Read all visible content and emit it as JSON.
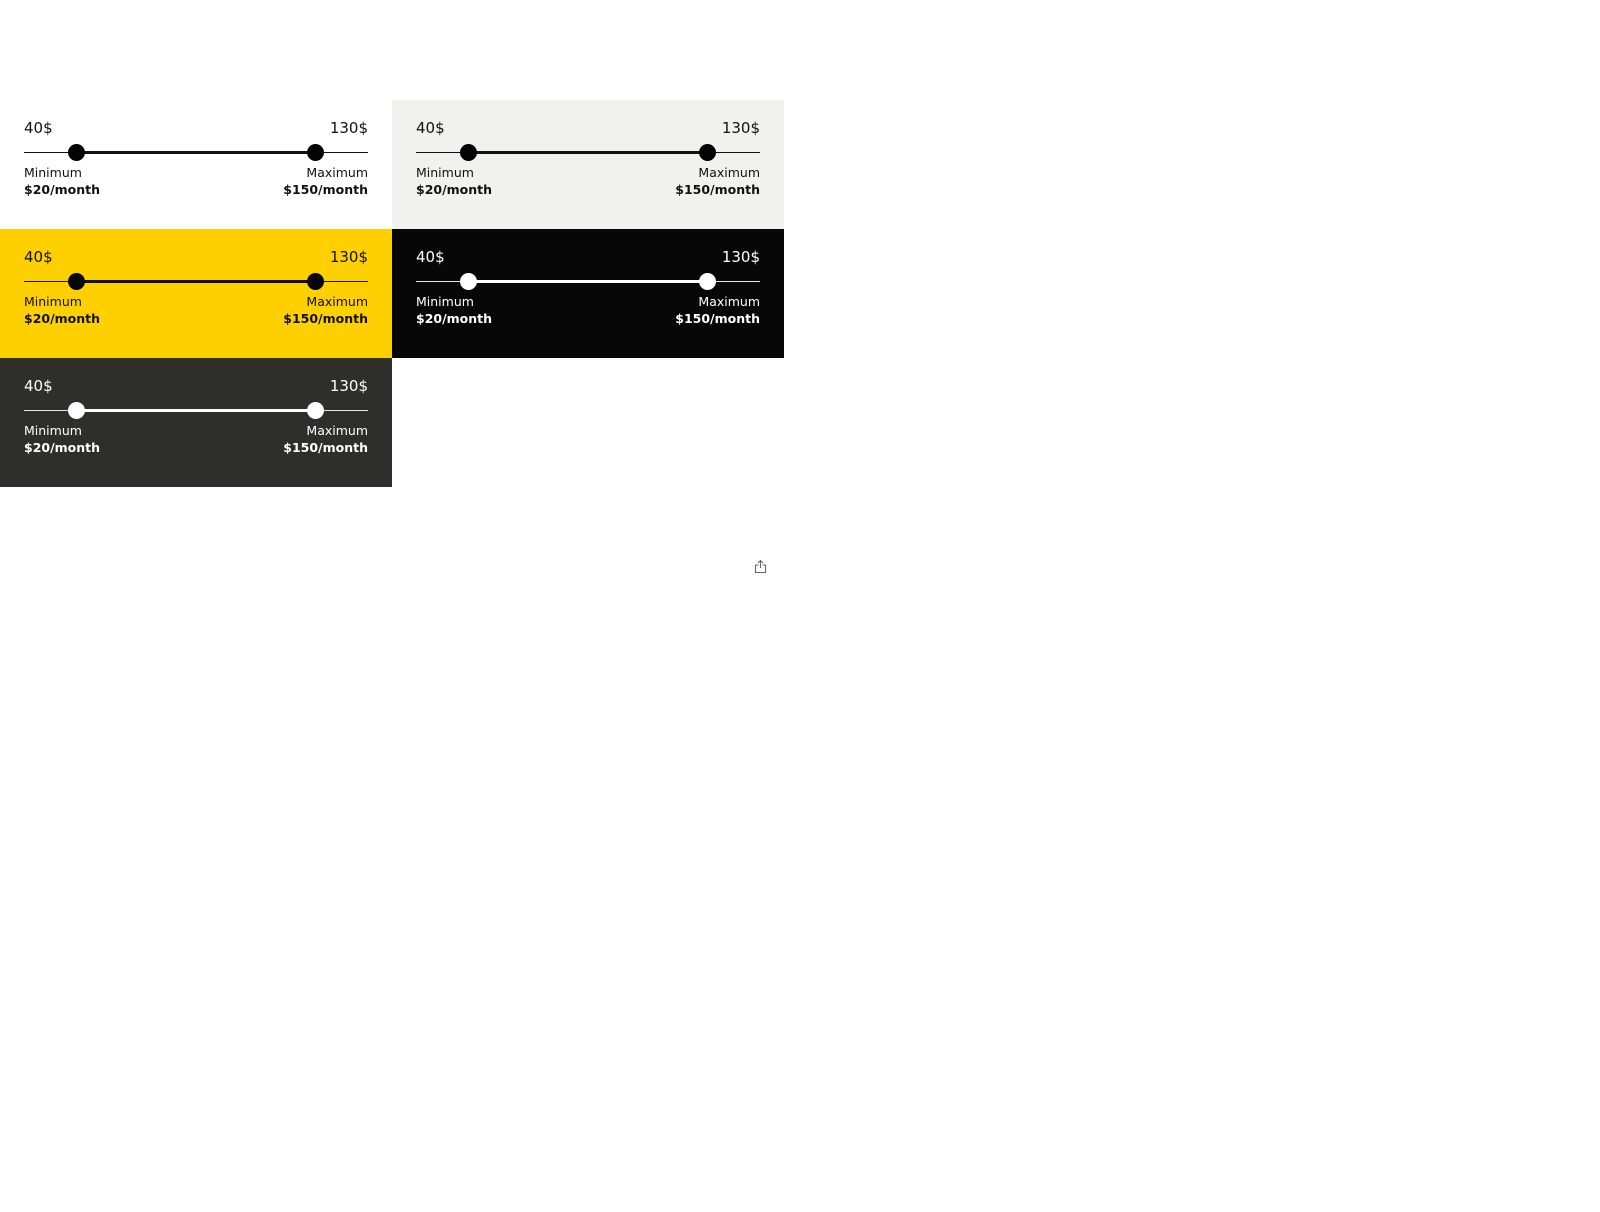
{
  "slider_min": 20,
  "slider_max": 150,
  "panels": [
    {
      "id": "white",
      "background": "#ffffff",
      "ink": "dark",
      "low_value": 40,
      "high_value": 130,
      "low_label": "40$",
      "high_label": "130$",
      "min_caption": "Minimum",
      "min_amount": "$20/month",
      "max_caption": "Maximum",
      "max_amount": "$150/month"
    },
    {
      "id": "light-gray",
      "background": "#f1f1ef",
      "ink": "dark",
      "low_value": 40,
      "high_value": 130,
      "low_label": "40$",
      "high_label": "130$",
      "min_caption": "Minimum",
      "min_amount": "$20/month",
      "max_caption": "Maximum",
      "max_amount": "$150/month"
    },
    {
      "id": "yellow",
      "background": "#ffd000",
      "ink": "dark",
      "low_value": 40,
      "high_value": 130,
      "low_label": "40$",
      "high_label": "130$",
      "min_caption": "Minimum",
      "min_amount": "$20/month",
      "max_caption": "Maximum",
      "max_amount": "$150/month"
    },
    {
      "id": "black",
      "background": "#070707",
      "ink": "light",
      "low_value": 40,
      "high_value": 130,
      "low_label": "40$",
      "high_label": "130$",
      "min_caption": "Minimum",
      "min_amount": "$20/month",
      "max_caption": "Maximum",
      "max_amount": "$150/month"
    },
    {
      "id": "charcoal",
      "background": "#2e2e2a",
      "ink": "light",
      "low_value": 40,
      "high_value": 130,
      "low_label": "40$",
      "high_label": "130$",
      "min_caption": "Minimum",
      "min_amount": "$20/month",
      "max_caption": "Maximum",
      "max_amount": "$150/month"
    }
  ],
  "share_icon": "share-icon"
}
